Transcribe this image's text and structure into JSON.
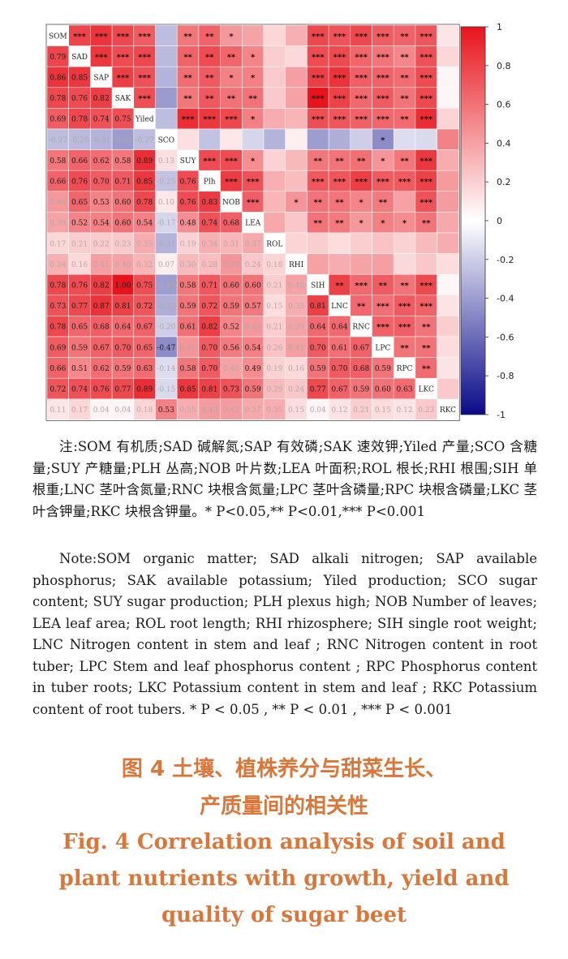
{
  "chart_data": {
    "type": "heatmap",
    "variables": [
      "SOM",
      "SAD",
      "SAP",
      "SAK",
      "Yiled",
      "SCO",
      "SUY",
      "Plh",
      "NOB",
      "LEA",
      "ROL",
      "RHI",
      "SIH",
      "LNC",
      "RNC",
      "LPC",
      "RPC",
      "LKC",
      "RKC"
    ],
    "lower_matrix": [
      [],
      [
        0.79
      ],
      [
        0.86,
        0.85
      ],
      [
        0.78,
        0.76,
        0.82
      ],
      [
        0.69,
        0.78,
        0.74,
        0.75
      ],
      [
        -0.27,
        -0.28,
        -0.31,
        -0.41,
        -0.27
      ],
      [
        0.58,
        0.66,
        0.62,
        0.58,
        0.89,
        0.13
      ],
      [
        0.66,
        0.76,
        0.7,
        0.71,
        0.85,
        -0.25,
        0.76
      ],
      [
        0.44,
        0.65,
        0.53,
        0.6,
        0.78,
        0.1,
        0.76,
        0.83
      ],
      [
        0.39,
        0.52,
        0.54,
        0.6,
        0.54,
        -0.17,
        0.48,
        0.74,
        0.68
      ],
      [
        0.17,
        0.21,
        0.22,
        0.23,
        0.35,
        -0.31,
        0.19,
        0.34,
        0.31,
        0.37
      ],
      [
        0.34,
        0.16,
        0.41,
        0.4,
        0.32,
        0.07,
        0.3,
        0.28,
        0.45,
        0.24,
        0.18
      ],
      [
        0.78,
        0.76,
        0.82,
        1.0,
        0.75,
        -0.4,
        0.58,
        0.71,
        0.6,
        0.6,
        0.21,
        0.4
      ],
      [
        0.73,
        0.77,
        0.87,
        0.81,
        0.72,
        -0.33,
        0.59,
        0.72,
        0.59,
        0.57,
        0.15,
        0.35,
        0.81
      ],
      [
        0.78,
        0.65,
        0.68,
        0.64,
        0.67,
        -0.2,
        0.61,
        0.82,
        0.52,
        0.44,
        0.21,
        0.39,
        0.64,
        0.64
      ],
      [
        0.69,
        0.59,
        0.67,
        0.7,
        0.65,
        -0.47,
        0.45,
        0.7,
        0.56,
        0.54,
        0.26,
        0.41,
        0.7,
        0.61,
        0.67
      ],
      [
        0.66,
        0.51,
        0.62,
        0.59,
        0.63,
        -0.14,
        0.58,
        0.7,
        0.4,
        0.49,
        0.19,
        0.16,
        0.59,
        0.7,
        0.68,
        0.59
      ],
      [
        0.72,
        0.74,
        0.76,
        0.77,
        0.89,
        -0.15,
        0.85,
        0.81,
        0.73,
        0.59,
        0.29,
        0.24,
        0.77,
        0.67,
        0.59,
        0.6,
        0.63
      ],
      [
        0.11,
        0.17,
        0.04,
        0.04,
        0.18,
        0.53,
        0.35,
        0.43,
        0.42,
        0.37,
        0.35,
        0.15,
        0.04,
        0.12,
        0.21,
        0.15,
        0.12,
        0.23
      ]
    ],
    "upper_stars": [
      [
        "",
        "***",
        "***",
        "***",
        "***",
        "",
        "**",
        "**",
        "*",
        "",
        "",
        "",
        "***",
        "***",
        "***",
        "***",
        "**",
        "***",
        ""
      ],
      [
        "",
        "",
        "***",
        "***",
        "***",
        "",
        "**",
        "**",
        "**",
        "*",
        "",
        "",
        "***",
        "***",
        "***",
        "***",
        "**",
        "***",
        ""
      ],
      [
        "",
        "",
        "",
        "***",
        "***",
        "",
        "**",
        "**",
        "*",
        "*",
        "",
        "",
        "***",
        "***",
        "***",
        "***",
        "**",
        "***",
        ""
      ],
      [
        "",
        "",
        "",
        "",
        "***",
        "",
        "**",
        "**",
        "**",
        "**",
        "",
        "",
        "***",
        "***",
        "***",
        "***",
        "**",
        "***",
        ""
      ],
      [
        "",
        "",
        "",
        "",
        "",
        "",
        "***",
        "***",
        "***",
        "*",
        "",
        "",
        "***",
        "***",
        "***",
        "***",
        "**",
        "***",
        ""
      ],
      [
        "",
        "",
        "",
        "",
        "",
        "",
        "",
        "",
        "",
        "",
        "",
        "",
        "",
        "",
        "",
        "*",
        "",
        ""
      ],
      [
        "",
        "",
        "",
        "",
        "",
        "",
        "",
        "***",
        "***",
        "*",
        "",
        "",
        "**",
        "**",
        "**",
        "*",
        "**",
        "***",
        ""
      ],
      [
        "",
        "",
        "",
        "",
        "",
        "",
        "",
        "",
        "***",
        "***",
        "",
        "",
        "***",
        "***",
        "***",
        "***",
        "***",
        "***",
        ""
      ],
      [
        "",
        "",
        "",
        "",
        "",
        "",
        "",
        "",
        "",
        "***",
        "",
        "*",
        "**",
        "**",
        "*",
        "**",
        "",
        "***",
        ""
      ],
      [
        "",
        "",
        "",
        "",
        "",
        "",
        "",
        "",
        "",
        "",
        "",
        "",
        "**",
        "**",
        "*",
        "*",
        "*",
        "**",
        ""
      ],
      [
        "",
        "",
        "",
        "",
        "",
        "",
        "",
        "",
        "",
        "",
        "",
        "",
        "",
        "",
        "",
        "",
        "",
        "",
        ""
      ],
      [
        "",
        "",
        "",
        "",
        "",
        "",
        "",
        "",
        "",
        "",
        "",
        "",
        "",
        "",
        "",
        "",
        "",
        "",
        ""
      ],
      [
        "",
        "",
        "",
        "",
        "",
        "",
        "",
        "",
        "",
        "",
        "",
        "",
        "",
        "**",
        "***",
        "**",
        "**",
        "***",
        ""
      ],
      [
        "",
        "",
        "",
        "",
        "",
        "",
        "",
        "",
        "",
        "",
        "",
        "",
        "",
        "",
        "**",
        "***",
        "***",
        "***",
        ""
      ],
      [
        "",
        "",
        "",
        "",
        "",
        "",
        "",
        "",
        "",
        "",
        "",
        "",
        "",
        "",
        "",
        "***",
        "***",
        "**",
        ""
      ],
      [
        "",
        "",
        "",
        "",
        "",
        "",
        "",
        "",
        "",
        "",
        "",
        "",
        "",
        "",
        "",
        "",
        "**",
        "**",
        ""
      ],
      [
        "",
        "",
        "",
        "",
        "",
        "",
        "",
        "",
        "",
        "",
        "",
        "",
        "",
        "",
        "",
        "",
        "",
        "**",
        ""
      ],
      [
        "",
        "",
        "",
        "",
        "",
        "",
        "",
        "",
        "",
        "",
        "",
        "",
        "",
        "",
        "",
        "",
        "",
        "",
        ""
      ],
      [
        "",
        "",
        "",
        "",
        "",
        "",
        "",
        "",
        "",
        "",
        "",
        "",
        "",
        "",
        "",
        "",
        "",
        "",
        ""
      ]
    ],
    "color_scale": {
      "min": -1,
      "max": 1,
      "low_color": "#0a0a8a",
      "mid_color": "#ffffff",
      "high_color": "#e8141c"
    },
    "colorbar_ticks": [
      "1",
      "0.8",
      "0.6",
      "0.4",
      "0.2",
      "0",
      "-0.2",
      "-0.4",
      "-0.6",
      "-0.8",
      "-1"
    ],
    "legend_position": "right"
  },
  "note_zh": "注:SOM 有机质;SAD 碱解氮;SAP 有效磷;SAK 速效钾;Yiled 产量;SCO 含糖量;SUY 产糖量;PLH 丛高;NOB 叶片数;LEA 叶面积;ROL 根长;RHI 根围;SIH 单根重;LNC 茎叶含氮量;RNC 块根含氮量;LPC 茎叶含磷量;RPC 块根含磷量;LKC 茎叶含钾量;RKC 块根含钾量。* P<0.05,** P<0.01,*** P<0.001",
  "note_en": "Note:SOM organic matter; SAD alkali nitrogen; SAP available phosphorus; SAK available potassium; Yiled production; SCO sugar content; SUY sugar production; PLH plexus high; NOB Number of leaves; LEA leaf area; ROL root length; RHI rhizosphere; SIH single root weight; LNC Nitrogen content in stem and leaf ; RNC Nitrogen content in root tuber; LPC Stem and leaf phosphorus content ; RPC Phosphorus content in tuber roots; LKC Potassium content in stem and leaf ; RKC Potassium content of root tubers. * P < 0.05 , ** P < 0.01 , *** P < 0.001",
  "caption_zh": [
    "图 4 土壤、植株养分与甜菜生长、",
    "产质量间的相关性"
  ],
  "caption_en": [
    "Fig. 4 Correlation analysis of soil and",
    "plant nutrients with growth, yield and",
    "quality of sugar beet"
  ]
}
